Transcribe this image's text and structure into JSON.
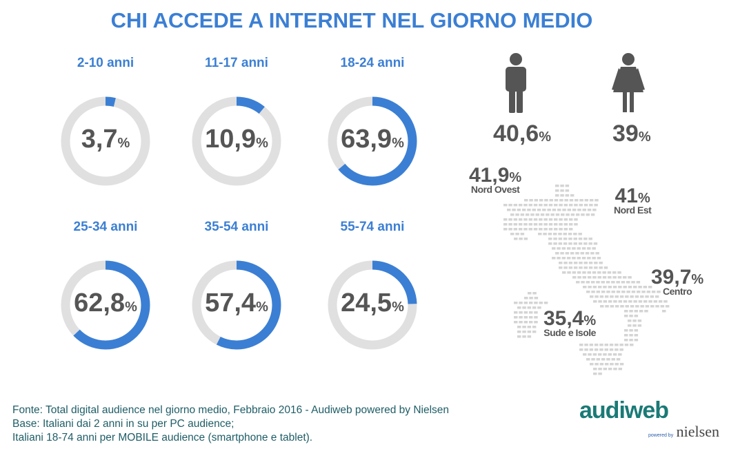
{
  "title": "CHI ACCEDE A INTERNET NEL GIORNO MEDIO",
  "chart_data": {
    "type": "donut",
    "title": "CHI ACCEDE A INTERNET NEL GIORNO MEDIO",
    "categories": [
      "2-10 anni",
      "11-17 anni",
      "18-24 anni",
      "25-34 anni",
      "35-54 anni",
      "55-74 anni"
    ],
    "values": [
      3.7,
      10.9,
      63.9,
      62.8,
      57.4,
      24.5
    ],
    "value_labels": [
      "3,7",
      "10,9",
      "63,9",
      "62,8",
      "57,4",
      "24,5"
    ],
    "unit": "%",
    "gender": [
      {
        "name": "uomo",
        "icon": "man-icon",
        "value": 40.6,
        "label": "40,6"
      },
      {
        "name": "donna",
        "icon": "woman-icon",
        "value": 39,
        "label": "39"
      }
    ],
    "regions": [
      {
        "name": "Nord Ovest",
        "value": 41.9,
        "label": "41,9"
      },
      {
        "name": "Nord Est",
        "value": 41,
        "label": "41"
      },
      {
        "name": "Centro",
        "value": 39.7,
        "label": "39,7"
      },
      {
        "name": "Sude e Isole",
        "value": 35.4,
        "label": "35,4"
      }
    ]
  },
  "colors": {
    "accent": "#3b7fd4",
    "track": "#e0e0e0",
    "text": "#555555",
    "map": "#d4d4d4",
    "footer": "#1e5d66"
  },
  "footer": [
    "Fonte: Total digital audience nel giorno medio, Febbraio 2016 - Audiweb powered by Nielsen",
    "Base: Italiani dai 2 anni in su per PC audience;",
    "Italiani 18-74 anni per MOBILE audience (smartphone e tablet)."
  ],
  "logo": {
    "brand": "audiweb",
    "powered": "powered by",
    "partner": "nielsen"
  }
}
